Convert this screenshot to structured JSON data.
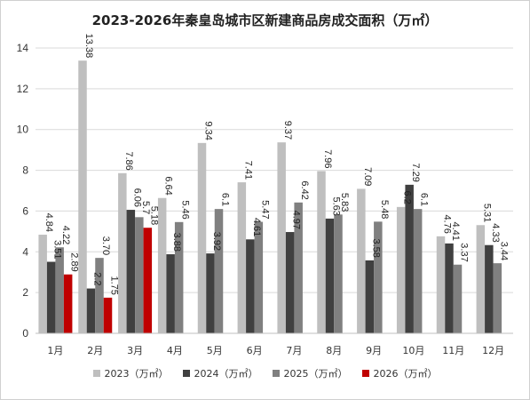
{
  "chart_data": {
    "type": "bar",
    "title": "2023-2026年秦皇岛城市区新建商品房成交面积（万㎡）",
    "categories": [
      "1月",
      "2月",
      "3月",
      "4月",
      "5月",
      "6月",
      "7月",
      "8月",
      "9月",
      "10月",
      "11月",
      "12月"
    ],
    "ylim": [
      0,
      14
    ],
    "yticks": [
      0,
      2,
      4,
      6,
      8,
      10,
      12,
      14
    ],
    "grid": true,
    "legend_position": "bottom",
    "series": [
      {
        "name": "2023（万㎡）",
        "color": "#bfbfbf",
        "values": [
          4.84,
          13.38,
          7.86,
          6.64,
          9.34,
          7.41,
          9.37,
          7.96,
          7.09,
          6.2,
          4.76,
          5.31
        ],
        "labels": [
          "4.84",
          "13.38",
          "7.86",
          "6.64",
          "9.34",
          "7.41",
          "9.37",
          "7.96",
          "7.09",
          "6.2",
          "4.76",
          "5.31"
        ]
      },
      {
        "name": "2024（万㎡）",
        "color": "#404040",
        "values": [
          3.51,
          2.2,
          6.06,
          3.88,
          3.92,
          4.61,
          4.97,
          5.63,
          3.58,
          7.29,
          4.41,
          4.33
        ],
        "labels": [
          "3.51",
          "2.2",
          "6.06",
          "3.88",
          "3.92",
          "4.61",
          "4.97",
          "5.63",
          "3.58",
          "7.29",
          "4.41",
          "4.33"
        ]
      },
      {
        "name": "2025（万㎡）",
        "color": "#808080",
        "values": [
          4.22,
          3.7,
          5.7,
          5.46,
          6.1,
          5.47,
          6.42,
          5.83,
          5.48,
          6.1,
          3.37,
          3.44
        ],
        "labels": [
          "4.22",
          "3.70",
          "5.7",
          "5.46",
          "6.1",
          "5.47",
          "6.42",
          "5.83",
          "5.48",
          "6.1",
          "3.37",
          "3.44"
        ]
      },
      {
        "name": "2026（万㎡）",
        "color": "#c00000",
        "values": [
          2.89,
          1.75,
          5.18,
          null,
          null,
          null,
          null,
          null,
          null,
          null,
          null,
          null
        ],
        "labels": [
          "2.89",
          "1.75",
          "5.18",
          null,
          null,
          null,
          null,
          null,
          null,
          null,
          null,
          null
        ]
      }
    ]
  }
}
